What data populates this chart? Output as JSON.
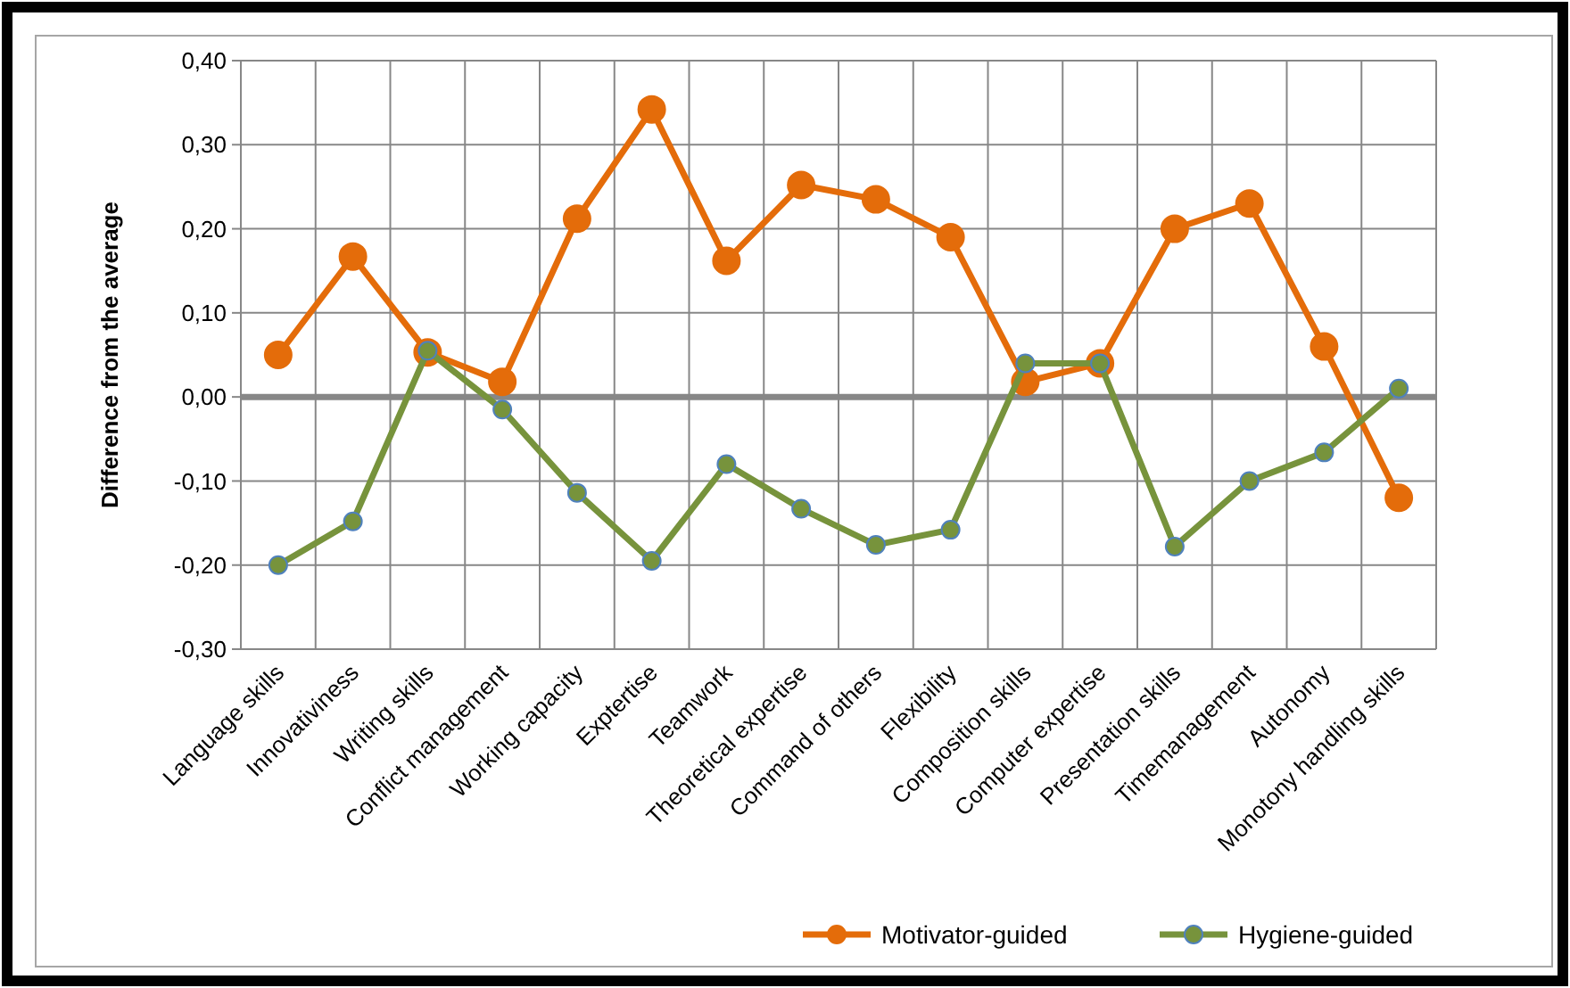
{
  "chart_data": {
    "type": "line",
    "ylabel": "Difference from the average",
    "categories": [
      "Language skills",
      "Innovativiness",
      "Writing skills",
      "Conflict management",
      "Working capacity",
      "Exptertise",
      "Teamwork",
      "Theoretical expertise",
      "Command of others",
      "Flexibility",
      "Composition skills",
      "Computer expertise",
      "Presentation skills",
      "Timemanagement",
      "Autonomy",
      "Monotony handling skills"
    ],
    "series": [
      {
        "name": "Motivator-guided",
        "color": "#e46c0a",
        "values": [
          0.05,
          0.167,
          0.053,
          0.018,
          0.212,
          0.342,
          0.162,
          0.252,
          0.235,
          0.19,
          0.018,
          0.04,
          0.2,
          0.23,
          0.06,
          -0.12
        ]
      },
      {
        "name": "Hygiene-guided",
        "color": "#77933c",
        "values": [
          -0.2,
          -0.148,
          0.055,
          -0.015,
          -0.114,
          -0.195,
          -0.08,
          -0.133,
          -0.176,
          -0.158,
          0.04,
          0.04,
          -0.178,
          -0.1,
          -0.066,
          0.01
        ]
      }
    ],
    "ylim": [
      -0.3,
      0.4
    ],
    "yticks": [
      {
        "value": -0.3,
        "label": "-0,30"
      },
      {
        "value": -0.2,
        "label": "-0,20"
      },
      {
        "value": -0.1,
        "label": "-0,10"
      },
      {
        "value": 0,
        "label": "0,00"
      },
      {
        "value": 0.1,
        "label": "0,10"
      },
      {
        "value": 0.2,
        "label": "0,20"
      },
      {
        "value": 0.3,
        "label": "0,30"
      },
      {
        "value": 0.4,
        "label": "0,40"
      }
    ],
    "grid": true,
    "legend": "bottom right",
    "marker": "circle",
    "line_style": "solid"
  }
}
